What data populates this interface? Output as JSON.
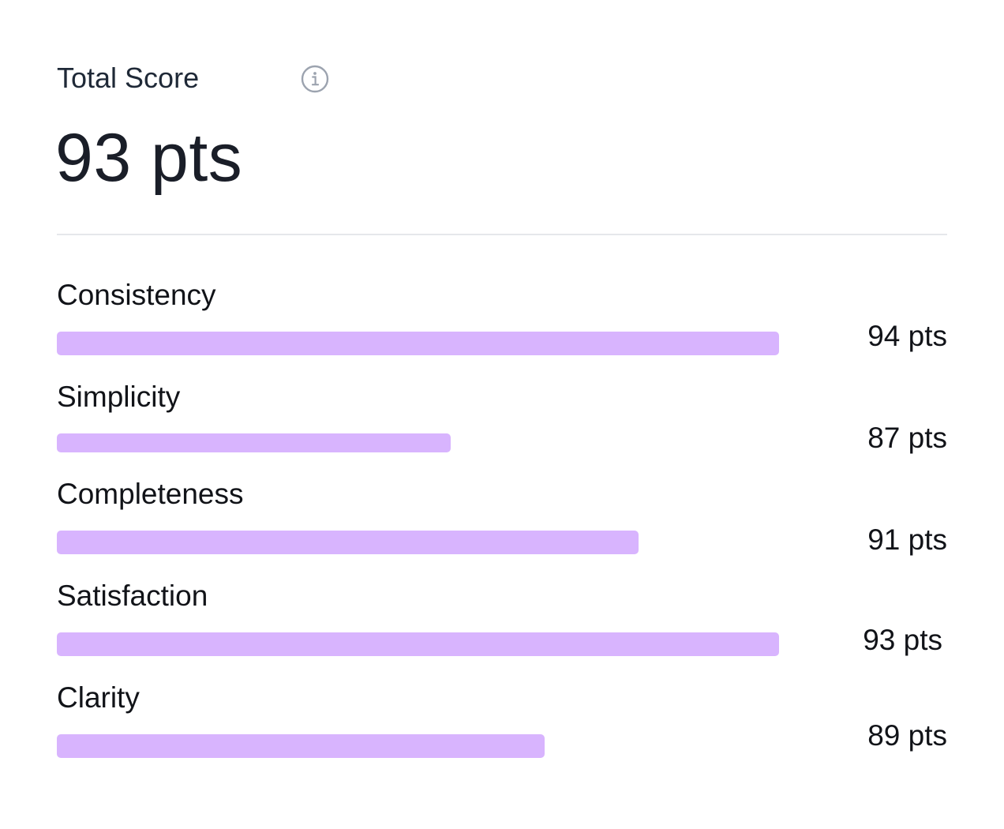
{
  "header": {
    "title": "Total Score",
    "total": "93 pts",
    "info_icon": "info-icon"
  },
  "colors": {
    "bar": "#d8b4fe",
    "divider": "#e5e7eb",
    "text": "#111318"
  },
  "metrics": [
    {
      "label": "Consistency",
      "value_text": "94 pts",
      "value": 94
    },
    {
      "label": "Simplicity",
      "value_text": "87 pts",
      "value": 87
    },
    {
      "label": "Completeness",
      "value_text": "91 pts",
      "value": 91
    },
    {
      "label": "Satisfaction",
      "value_text": "93 pts",
      "value": 93
    },
    {
      "label": "Clarity",
      "value_text": "89 pts",
      "value": 89
    }
  ]
}
